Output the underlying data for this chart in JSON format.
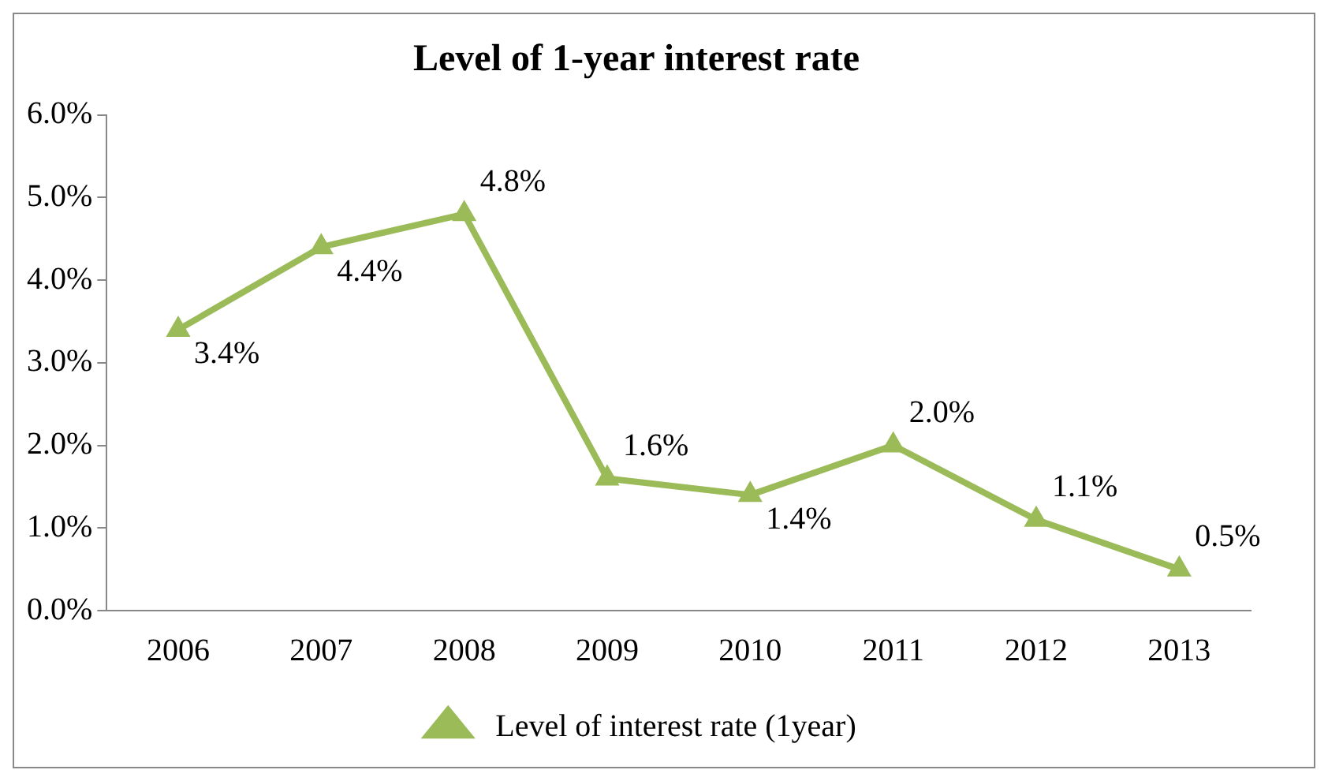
{
  "chart_data": {
    "type": "line",
    "title": "Level of 1-year interest rate",
    "categories": [
      "2006",
      "2007",
      "2008",
      "2009",
      "2010",
      "2011",
      "2012",
      "2013"
    ],
    "series": [
      {
        "name": "Level of interest rate (1year)",
        "color": "#9bbb59",
        "values": [
          3.4,
          4.4,
          4.8,
          1.6,
          1.4,
          2.0,
          1.1,
          0.5
        ],
        "value_labels": [
          "3.4%",
          "4.4%",
          "4.8%",
          "1.6%",
          "1.4%",
          "2.0%",
          "1.1%",
          "0.5%"
        ]
      }
    ],
    "ylim": [
      0,
      6
    ],
    "yticks": [
      {
        "value": 0,
        "label": "0.0%"
      },
      {
        "value": 1,
        "label": "1.0%"
      },
      {
        "value": 2,
        "label": "2.0%"
      },
      {
        "value": 3,
        "label": "3.0%"
      },
      {
        "value": 4,
        "label": "4.0%"
      },
      {
        "value": 5,
        "label": "5.0%"
      },
      {
        "value": 6,
        "label": "6.0%"
      }
    ],
    "grid": false,
    "legend": "bottom",
    "marker": "triangle",
    "line_style": "solid"
  }
}
